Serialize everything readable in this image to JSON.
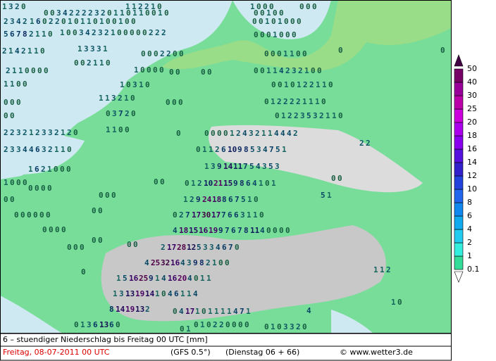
{
  "map": {
    "labels": [
      [
        1,
        3,
        2,
        0
      ],
      [
        1,
        1,
        2,
        2,
        1,
        0
      ],
      [
        1,
        0,
        0,
        0
      ],
      [
        0,
        0,
        0
      ],
      [
        0,
        0,
        3,
        4,
        2,
        2,
        2,
        2,
        3,
        2,
        0,
        1,
        1,
        0,
        1,
        1,
        0,
        0,
        1,
        0
      ],
      [
        0,
        0,
        1,
        0,
        0
      ],
      [
        2,
        3,
        4,
        2
      ],
      [
        1,
        6,
        0,
        2,
        2,
        0,
        1,
        0,
        1,
        1,
        0,
        1,
        0,
        0,
        1,
        0,
        0
      ],
      [
        0,
        0,
        1,
        0,
        1,
        0,
        0,
        0
      ],
      [
        5,
        6,
        7,
        8,
        2,
        1,
        1,
        0
      ],
      [
        1,
        0,
        0,
        3,
        4,
        2,
        3,
        2,
        1,
        0,
        0,
        0,
        0,
        0,
        2,
        2,
        2
      ],
      [
        0,
        0,
        0,
        1,
        0,
        0,
        0
      ],
      [
        2,
        1,
        4,
        2,
        1,
        1,
        0
      ],
      [
        1,
        3,
        3,
        3,
        1
      ],
      [
        0,
        0,
        0,
        2,
        2,
        0,
        0
      ],
      [
        0,
        0,
        0,
        1,
        1,
        0,
        0
      ],
      [
        0
      ],
      [
        0
      ],
      [
        0,
        0,
        2,
        1,
        1,
        0
      ],
      [
        2,
        1,
        1,
        0,
        0,
        0,
        0
      ],
      [
        1,
        0,
        0,
        0,
        0
      ],
      [
        0,
        0
      ],
      [
        0,
        0
      ],
      [
        0,
        0,
        1,
        1,
        4,
        2,
        3,
        2,
        1,
        0,
        0
      ],
      [
        1,
        1,
        0,
        0
      ],
      [
        1,
        0,
        3,
        1,
        0
      ],
      [
        0,
        0,
        1,
        0,
        1,
        2,
        2,
        1,
        1,
        0
      ],
      [
        1,
        1,
        3,
        2,
        1,
        0
      ],
      [
        0,
        0,
        0
      ],
      [
        0,
        1,
        2,
        2,
        2,
        2,
        1,
        1,
        1,
        0
      ],
      [
        0,
        0,
        0
      ],
      [
        0,
        3,
        7,
        2,
        0
      ],
      [
        0,
        1,
        2,
        2,
        3,
        5,
        3,
        2,
        1,
        1,
        0
      ],
      [
        0,
        0
      ],
      [
        2,
        2,
        3,
        2,
        1,
        2,
        3,
        3,
        2,
        1,
        2,
        0
      ],
      [
        1,
        1,
        0,
        0
      ],
      [
        0
      ],
      [
        0,
        0,
        0,
        0,
        1,
        2,
        4,
        3,
        2,
        1,
        1,
        4,
        4,
        4,
        2
      ],
      [
        2,
        3,
        3,
        4,
        4,
        6,
        3,
        2,
        1,
        1,
        0
      ],
      [
        0,
        1,
        1,
        2,
        6,
        10,
        9,
        8,
        5,
        3,
        4,
        7,
        5,
        1
      ],
      [
        2,
        2
      ],
      [
        1,
        6,
        2,
        1,
        0,
        0,
        0
      ],
      [
        1,
        3,
        9,
        14,
        11,
        7,
        5,
        4,
        3,
        5,
        3
      ],
      [
        1,
        0,
        0,
        0
      ],
      [
        0,
        0
      ],
      [
        0,
        1,
        2,
        10,
        21,
        15,
        9,
        8,
        6,
        4,
        1,
        0,
        1
      ],
      [
        0,
        0
      ],
      [
        0,
        0,
        0,
        0
      ],
      [
        0,
        0
      ],
      [
        0,
        0,
        0
      ],
      [
        1,
        2,
        9,
        24,
        18,
        8,
        6,
        7,
        5,
        1,
        0
      ],
      [
        5,
        1
      ],
      [
        0,
        0,
        0,
        0,
        0,
        0
      ],
      [
        0,
        0
      ],
      [
        0,
        2,
        7,
        17,
        30,
        17,
        7,
        6,
        6,
        3,
        1,
        1,
        0
      ],
      [
        0,
        0,
        0,
        0
      ],
      [
        4,
        18,
        15,
        16,
        19,
        9,
        7,
        6,
        7,
        8,
        11,
        4,
        0,
        0,
        0,
        0
      ],
      [
        0,
        0
      ],
      [
        0,
        0
      ],
      [
        2,
        17,
        28,
        12,
        5,
        3,
        3,
        4,
        6,
        7,
        0
      ],
      [
        0,
        0,
        0
      ],
      [
        4,
        25,
        32,
        16,
        4,
        3,
        9,
        8,
        2,
        1,
        0,
        0
      ],
      [
        0
      ],
      [
        1,
        1,
        2
      ],
      [
        1,
        5,
        16,
        25,
        9,
        1,
        4,
        16,
        20,
        4,
        0,
        1,
        1
      ],
      [
        1,
        3,
        13,
        19,
        14,
        1,
        0,
        4,
        6,
        1,
        1,
        4
      ],
      [
        8,
        14,
        19,
        13,
        2
      ],
      [
        0,
        4,
        17,
        1,
        0,
        1,
        1,
        1,
        1,
        4,
        7,
        1
      ],
      [
        1,
        0
      ],
      [
        0,
        1,
        3,
        6,
        13,
        6,
        0
      ],
      [
        0,
        1,
        0,
        2,
        2,
        0,
        0,
        0,
        0
      ],
      [
        0,
        1,
        0,
        3,
        3,
        2,
        0
      ],
      [
        4
      ],
      [
        0,
        1
      ]
    ]
  },
  "legend": {
    "levels": [
      0.1,
      1,
      2,
      4,
      6,
      8,
      10,
      12,
      14,
      16,
      18,
      20,
      25,
      30,
      40,
      50
    ],
    "colors": [
      "#33dd99",
      "#33eedd",
      "#22ccee",
      "#11aaee",
      "#1188ee",
      "#2266ee",
      "#2244dd",
      "#3322cc",
      "#5511dd",
      "#8800ee",
      "#aa00ee",
      "#cc00dd",
      "#bb00aa",
      "#990099",
      "#770066",
      "#440044"
    ]
  },
  "footer": {
    "title": "6 – stuendiger Niederschlag bis Freitag 00 UTC [mm]",
    "date": "Freitag, 08-07-2011   00 UTC",
    "model": "(GFS 0.5°)",
    "run": "(Dienstag 06 + 66)",
    "credit": "© www.wetter3.de"
  }
}
